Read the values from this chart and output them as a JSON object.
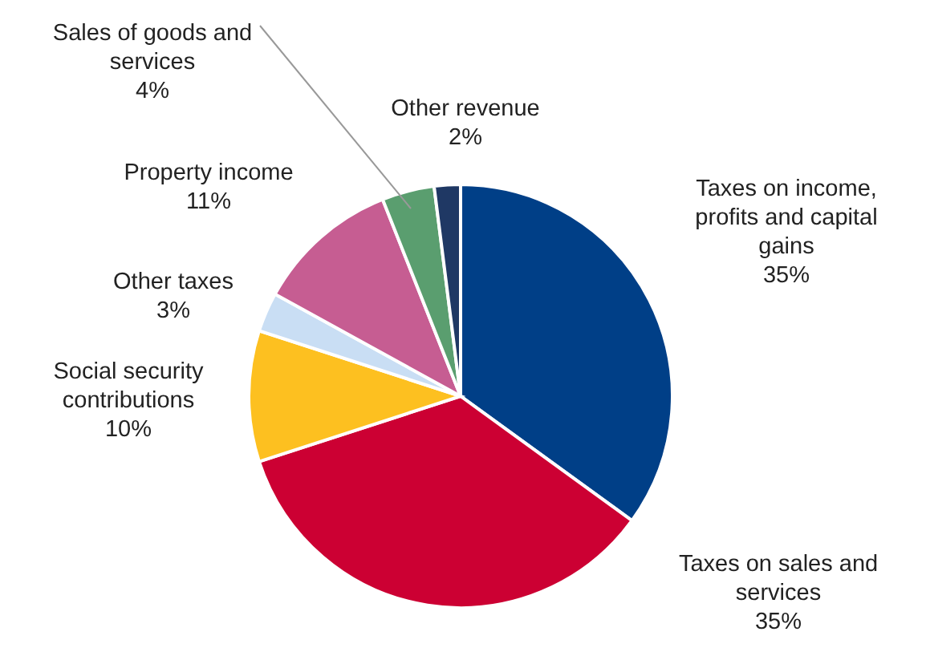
{
  "chart_data": {
    "type": "pie",
    "categories": [
      "Taxes on income, profits and capital gains",
      "Taxes on sales and services",
      "Social security contributions",
      "Other taxes",
      "Property income",
      "Sales of goods and services",
      "Other revenue"
    ],
    "values": [
      35,
      35,
      10,
      3,
      11,
      4,
      2
    ],
    "value_labels": [
      "35%",
      "35%",
      "10%",
      "3%",
      "11%",
      "4%",
      "2%"
    ],
    "colors": [
      "#003f87",
      "#cc0033",
      "#fdc020",
      "#c9def4",
      "#c65d92",
      "#5a9e6f",
      "#1f3864"
    ]
  }
}
